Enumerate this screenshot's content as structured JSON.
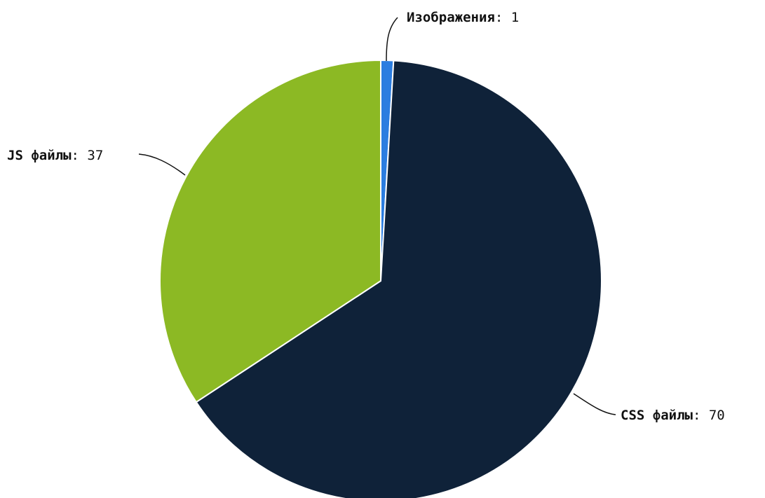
{
  "chart_data": {
    "type": "pie",
    "title": "",
    "label_separator": ": ",
    "slices": [
      {
        "label": "Изображения",
        "value": 1,
        "color": "#2b7de0"
      },
      {
        "label": "CSS файлы",
        "value": 70,
        "color": "#0f2239"
      },
      {
        "label": "JS файлы",
        "value": 37,
        "color": "#8cb924"
      }
    ],
    "start": "top",
    "direction": "clockwise",
    "legend": "none"
  }
}
